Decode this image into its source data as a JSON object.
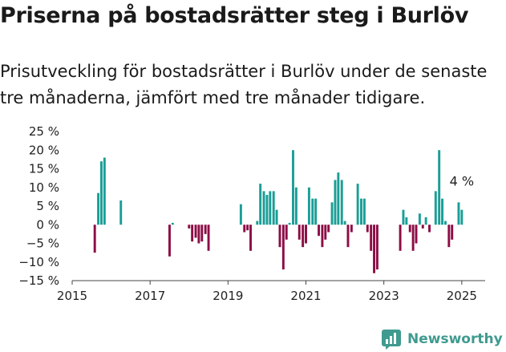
{
  "header": {
    "title": "Priserna på bostadsrätter steg i Burlöv",
    "subtitle": "Prisutveckling för bostadsrätter i Burlöv under de senaste tre månaderna, jämfört med tre månader tidigare."
  },
  "brand": {
    "name": "Newsworthy",
    "icon": "newsworthy-logo-icon",
    "color": "#3f9a8f"
  },
  "chart_data": {
    "type": "bar",
    "title": "Priserna på bostadsrätter steg i Burlöv",
    "xlabel": "",
    "ylabel": "",
    "xlim": [
      2015.0,
      2025.6
    ],
    "ylim": [
      -15,
      25
    ],
    "x_ticks": [
      {
        "value": 2015,
        "label": "2015"
      },
      {
        "value": 2017,
        "label": "2017"
      },
      {
        "value": 2019,
        "label": "2019"
      },
      {
        "value": 2021,
        "label": "2021"
      },
      {
        "value": 2023,
        "label": "2023"
      },
      {
        "value": 2025,
        "label": "2025"
      }
    ],
    "y_ticks": [
      {
        "value": 25,
        "label": "25 %"
      },
      {
        "value": 20,
        "label": "20 %"
      },
      {
        "value": 15,
        "label": "15 %"
      },
      {
        "value": 10,
        "label": "10 %"
      },
      {
        "value": 5,
        "label": "5 %"
      },
      {
        "value": 0,
        "label": "0 %"
      },
      {
        "value": -5,
        "label": "−5 %"
      },
      {
        "value": -10,
        "label": "−10 %"
      },
      {
        "value": -15,
        "label": "−15 %"
      }
    ],
    "grid": false,
    "colors": {
      "positive": "#1a9e96",
      "negative": "#8c0d45"
    },
    "bar_width_years": 0.06,
    "series": [
      {
        "points": [
          {
            "x": 2015.58,
            "y": -7.5
          },
          {
            "x": 2015.67,
            "y": 8.5
          },
          {
            "x": 2015.75,
            "y": 17
          },
          {
            "x": 2015.83,
            "y": 18
          },
          {
            "x": 2016.25,
            "y": 6.5
          },
          {
            "x": 2017.5,
            "y": -8.5
          },
          {
            "x": 2017.58,
            "y": 0.5
          },
          {
            "x": 2018.0,
            "y": -1
          },
          {
            "x": 2018.08,
            "y": -4.5
          },
          {
            "x": 2018.17,
            "y": -3.5
          },
          {
            "x": 2018.25,
            "y": -5
          },
          {
            "x": 2018.33,
            "y": -4.5
          },
          {
            "x": 2018.42,
            "y": -2.5
          },
          {
            "x": 2018.5,
            "y": -7
          },
          {
            "x": 2019.33,
            "y": 5.5
          },
          {
            "x": 2019.42,
            "y": -2
          },
          {
            "x": 2019.5,
            "y": -1.5
          },
          {
            "x": 2019.58,
            "y": -7
          },
          {
            "x": 2019.75,
            "y": 1
          },
          {
            "x": 2019.83,
            "y": 11
          },
          {
            "x": 2019.92,
            "y": 9
          },
          {
            "x": 2020.0,
            "y": 8
          },
          {
            "x": 2020.08,
            "y": 9
          },
          {
            "x": 2020.17,
            "y": 9
          },
          {
            "x": 2020.25,
            "y": 4
          },
          {
            "x": 2020.33,
            "y": -6
          },
          {
            "x": 2020.42,
            "y": -12
          },
          {
            "x": 2020.5,
            "y": -4
          },
          {
            "x": 2020.58,
            "y": 0.5
          },
          {
            "x": 2020.67,
            "y": 20
          },
          {
            "x": 2020.75,
            "y": 10
          },
          {
            "x": 2020.83,
            "y": -4
          },
          {
            "x": 2020.92,
            "y": -6
          },
          {
            "x": 2021.0,
            "y": -5
          },
          {
            "x": 2021.08,
            "y": 10
          },
          {
            "x": 2021.17,
            "y": 7
          },
          {
            "x": 2021.25,
            "y": 7
          },
          {
            "x": 2021.33,
            "y": -3
          },
          {
            "x": 2021.42,
            "y": -6
          },
          {
            "x": 2021.5,
            "y": -4
          },
          {
            "x": 2021.58,
            "y": -2
          },
          {
            "x": 2021.67,
            "y": 6
          },
          {
            "x": 2021.75,
            "y": 12
          },
          {
            "x": 2021.83,
            "y": 14
          },
          {
            "x": 2021.92,
            "y": 12
          },
          {
            "x": 2022.0,
            "y": 1
          },
          {
            "x": 2022.08,
            "y": -6
          },
          {
            "x": 2022.17,
            "y": -2
          },
          {
            "x": 2022.33,
            "y": 11
          },
          {
            "x": 2022.42,
            "y": 7
          },
          {
            "x": 2022.5,
            "y": 7
          },
          {
            "x": 2022.58,
            "y": -2
          },
          {
            "x": 2022.67,
            "y": -7
          },
          {
            "x": 2022.75,
            "y": -13
          },
          {
            "x": 2022.83,
            "y": -12
          },
          {
            "x": 2023.42,
            "y": -7
          },
          {
            "x": 2023.5,
            "y": 4
          },
          {
            "x": 2023.58,
            "y": 2
          },
          {
            "x": 2023.67,
            "y": -2
          },
          {
            "x": 2023.75,
            "y": -7
          },
          {
            "x": 2023.83,
            "y": -5
          },
          {
            "x": 2023.92,
            "y": 3
          },
          {
            "x": 2024.0,
            "y": -1
          },
          {
            "x": 2024.08,
            "y": 2
          },
          {
            "x": 2024.17,
            "y": -2
          },
          {
            "x": 2024.33,
            "y": 9
          },
          {
            "x": 2024.42,
            "y": 20
          },
          {
            "x": 2024.5,
            "y": 7
          },
          {
            "x": 2024.58,
            "y": 1
          },
          {
            "x": 2024.67,
            "y": -6
          },
          {
            "x": 2024.75,
            "y": -4
          },
          {
            "x": 2024.92,
            "y": 6
          },
          {
            "x": 2025.0,
            "y": 4
          }
        ]
      }
    ],
    "annotations": [
      {
        "text": "4 %",
        "x": 2025.0,
        "y": 4
      }
    ]
  }
}
